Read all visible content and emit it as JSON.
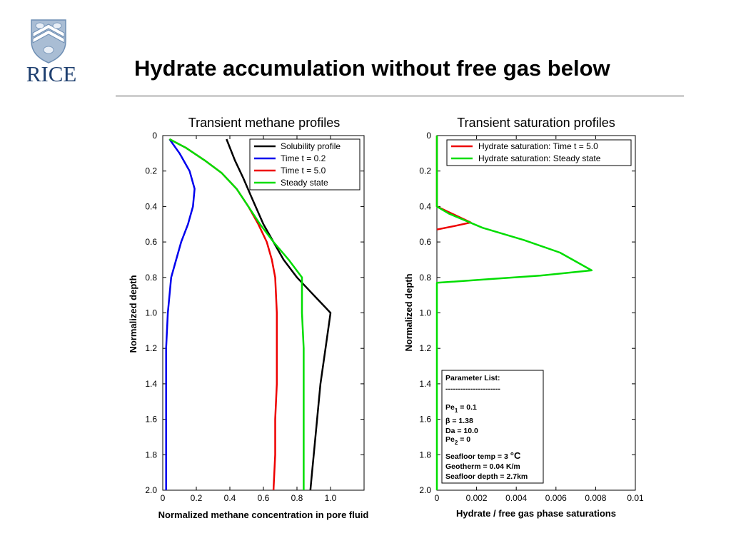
{
  "header": {
    "title": "Hydrate accumulation without free gas below",
    "logo_text": "RICE"
  },
  "chart_data": [
    {
      "type": "line",
      "title": "Transient methane profiles",
      "xlabel": "Normalized methane concentration in pore fluid",
      "ylabel": "Normalized depth",
      "xlim": [
        0,
        1.2
      ],
      "ylim": [
        0,
        2.0
      ],
      "y_inverted": true,
      "xticks": [
        0,
        0.2,
        0.4,
        0.6,
        0.8,
        1.0
      ],
      "xtick_labels": [
        "0",
        "0.2",
        "0.4",
        "0.6",
        "0.8",
        "1.0"
      ],
      "yticks": [
        0,
        0.2,
        0.4,
        0.6,
        0.8,
        1.0,
        1.2,
        1.4,
        1.6,
        1.8,
        2.0
      ],
      "ytick_labels": [
        "0",
        "0.2",
        "0.4",
        "0.6",
        "0.8",
        "1.0",
        "1.2",
        "1.4",
        "1.6",
        "1.8",
        "2.0"
      ],
      "grid": false,
      "legend_position": "top-right",
      "series": [
        {
          "name": "Solubility profile",
          "color": "#000000",
          "x": [
            0.38,
            0.43,
            0.48,
            0.53,
            0.6,
            0.66,
            0.72,
            0.8,
            0.86,
            0.92,
            0.97,
            1.0,
            0.97,
            0.94,
            0.92,
            0.9,
            0.89,
            0.88
          ],
          "y": [
            0.02,
            0.14,
            0.24,
            0.35,
            0.5,
            0.6,
            0.7,
            0.8,
            0.86,
            0.92,
            0.97,
            1.0,
            1.2,
            1.4,
            1.6,
            1.8,
            1.9,
            2.0
          ]
        },
        {
          "name": "Time t = 0.2",
          "color": "#0000ee",
          "x": [
            0.04,
            0.1,
            0.16,
            0.19,
            0.18,
            0.15,
            0.11,
            0.08,
            0.05,
            0.03,
            0.02,
            0.02,
            0.02,
            0.02,
            0.02
          ],
          "y": [
            0.02,
            0.1,
            0.2,
            0.3,
            0.4,
            0.5,
            0.6,
            0.7,
            0.8,
            1.0,
            1.2,
            1.4,
            1.6,
            1.8,
            2.0
          ]
        },
        {
          "name": "Time t = 5.0",
          "color": "#ee0000",
          "x": [
            0.04,
            0.14,
            0.25,
            0.35,
            0.44,
            0.51,
            0.57,
            0.62,
            0.65,
            0.67,
            0.68,
            0.68,
            0.68,
            0.67,
            0.67,
            0.66
          ],
          "y": [
            0.02,
            0.07,
            0.14,
            0.21,
            0.3,
            0.4,
            0.5,
            0.6,
            0.7,
            0.8,
            1.0,
            1.2,
            1.4,
            1.6,
            1.8,
            2.0
          ]
        },
        {
          "name": "Steady state",
          "color": "#00dd00",
          "x": [
            0.04,
            0.14,
            0.25,
            0.35,
            0.44,
            0.51,
            0.58,
            0.66,
            0.75,
            0.83,
            0.83,
            0.84,
            0.84,
            0.84,
            0.84,
            0.84
          ],
          "y": [
            0.02,
            0.07,
            0.14,
            0.21,
            0.3,
            0.4,
            0.5,
            0.6,
            0.7,
            0.8,
            1.0,
            1.2,
            1.4,
            1.6,
            1.8,
            2.0
          ]
        }
      ]
    },
    {
      "type": "line",
      "title": "Transient saturation profiles",
      "xlabel": "Hydrate / free gas phase saturations",
      "ylabel": "Normalized depth",
      "xlim": [
        0,
        0.01
      ],
      "ylim": [
        0,
        2.0
      ],
      "y_inverted": true,
      "xticks": [
        0,
        0.002,
        0.004,
        0.006,
        0.008,
        0.01
      ],
      "xtick_labels": [
        "0",
        "0.002",
        "0.004",
        "0.006",
        "0.008",
        "0.01"
      ],
      "yticks": [
        0,
        0.2,
        0.4,
        0.6,
        0.8,
        1.0,
        1.2,
        1.4,
        1.6,
        1.8,
        2.0
      ],
      "ytick_labels": [
        "0",
        "0.2",
        "0.4",
        "0.6",
        "0.8",
        "1.0",
        "1.2",
        "1.4",
        "1.6",
        "1.8",
        "2.0"
      ],
      "grid": false,
      "legend_position": "top-right",
      "series": [
        {
          "name": "Hydrate saturation: Time t = 5.0",
          "color": "#ee0000",
          "x": [
            0,
            0,
            0.0017,
            0.0009,
            0
          ],
          "y": [
            0,
            0.4,
            0.49,
            0.51,
            0.53
          ]
        },
        {
          "name": "Hydrate saturation: Steady state",
          "color": "#00dd00",
          "x": [
            0,
            0,
            0.0006,
            0.0023,
            0.0044,
            0.0062,
            0.0078,
            0.0052,
            0.0026,
            0,
            0
          ],
          "y": [
            0,
            0.4,
            0.44,
            0.52,
            0.59,
            0.66,
            0.76,
            0.79,
            0.81,
            0.83,
            2.0
          ]
        }
      ],
      "parameter_box": {
        "title": "Parameter List:",
        "divider": "----------------------",
        "pe1_label": "Pe",
        "pe1_sub": "1",
        "pe1_value": " = 0.1",
        "beta": "β = 1.38",
        "da": "Da = 10.0",
        "pe2_label": "Pe",
        "pe2_sub": "2",
        "pe2_value": " = 0",
        "seafloor_temp_prefix": "Seafloor temp = 3 ",
        "seafloor_temp_unit": "°C",
        "geotherm": "Geotherm = 0.04 K/m",
        "seafloor_depth": "Seafloor depth = 2.7km"
      }
    }
  ]
}
